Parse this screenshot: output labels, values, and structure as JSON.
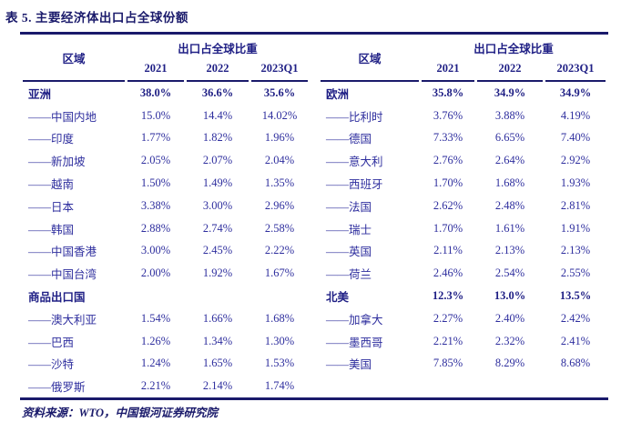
{
  "title": "表 5. 主要经济体出口占全球份额",
  "source_note": "资料来源：WTO，中国银河证券研究院",
  "colors": {
    "accent_dark": "#1a1a6b",
    "text_regular": "#2e2e9e",
    "text_bold": "#1f1f85",
    "background": "#ffffff"
  },
  "table": {
    "region_header": "区域",
    "group_header": "出口占全球比重",
    "year_headers": [
      "2021",
      "2022",
      "2023Q1"
    ],
    "left_rows": [
      {
        "label": "亚洲",
        "bold": true,
        "values": [
          "38.0%",
          "36.6%",
          "35.6%"
        ]
      },
      {
        "label": "——中国内地",
        "bold": false,
        "values": [
          "15.0%",
          "14.4%",
          "14.02%"
        ]
      },
      {
        "label": "——印度",
        "bold": false,
        "values": [
          "1.77%",
          "1.82%",
          "1.96%"
        ]
      },
      {
        "label": "——新加坡",
        "bold": false,
        "values": [
          "2.05%",
          "2.07%",
          "2.04%"
        ]
      },
      {
        "label": "——越南",
        "bold": false,
        "values": [
          "1.50%",
          "1.49%",
          "1.35%"
        ]
      },
      {
        "label": "——日本",
        "bold": false,
        "values": [
          "3.38%",
          "3.00%",
          "2.96%"
        ]
      },
      {
        "label": "——韩国",
        "bold": false,
        "values": [
          "2.88%",
          "2.74%",
          "2.58%"
        ]
      },
      {
        "label": "——中国香港",
        "bold": false,
        "values": [
          "3.00%",
          "2.45%",
          "2.22%"
        ]
      },
      {
        "label": "——中国台湾",
        "bold": false,
        "values": [
          "2.00%",
          "1.92%",
          "1.67%"
        ]
      },
      {
        "label": "商品出口国",
        "bold": true,
        "values": [
          "",
          "",
          ""
        ]
      },
      {
        "label": "——澳大利亚",
        "bold": false,
        "values": [
          "1.54%",
          "1.66%",
          "1.68%"
        ]
      },
      {
        "label": "——巴西",
        "bold": false,
        "values": [
          "1.26%",
          "1.34%",
          "1.30%"
        ]
      },
      {
        "label": "——沙特",
        "bold": false,
        "values": [
          "1.24%",
          "1.65%",
          "1.53%"
        ]
      },
      {
        "label": "——俄罗斯",
        "bold": false,
        "values": [
          "2.21%",
          "2.14%",
          "1.74%"
        ]
      }
    ],
    "right_rows": [
      {
        "label": "欧洲",
        "bold": true,
        "values": [
          "35.8%",
          "34.9%",
          "34.9%"
        ]
      },
      {
        "label": "——比利时",
        "bold": false,
        "values": [
          "3.76%",
          "3.88%",
          "4.19%"
        ]
      },
      {
        "label": "——德国",
        "bold": false,
        "values": [
          "7.33%",
          "6.65%",
          "7.40%"
        ]
      },
      {
        "label": "——意大利",
        "bold": false,
        "values": [
          "2.76%",
          "2.64%",
          "2.92%"
        ]
      },
      {
        "label": "——西班牙",
        "bold": false,
        "values": [
          "1.70%",
          "1.68%",
          "1.93%"
        ]
      },
      {
        "label": "——法国",
        "bold": false,
        "values": [
          "2.62%",
          "2.48%",
          "2.81%"
        ]
      },
      {
        "label": "——瑞士",
        "bold": false,
        "values": [
          "1.70%",
          "1.61%",
          "1.91%"
        ]
      },
      {
        "label": "——英国",
        "bold": false,
        "values": [
          "2.11%",
          "2.13%",
          "2.13%"
        ]
      },
      {
        "label": "——荷兰",
        "bold": false,
        "values": [
          "2.46%",
          "2.54%",
          "2.55%"
        ]
      },
      {
        "label": "北美",
        "bold": true,
        "values": [
          "12.3%",
          "13.0%",
          "13.5%"
        ]
      },
      {
        "label": "——加拿大",
        "bold": false,
        "values": [
          "2.27%",
          "2.40%",
          "2.42%"
        ]
      },
      {
        "label": "——墨西哥",
        "bold": false,
        "values": [
          "2.21%",
          "2.32%",
          "2.41%"
        ]
      },
      {
        "label": "——美国",
        "bold": false,
        "values": [
          "7.85%",
          "8.29%",
          "8.68%"
        ]
      },
      {
        "label": "",
        "bold": false,
        "values": [
          "",
          "",
          ""
        ]
      }
    ]
  }
}
